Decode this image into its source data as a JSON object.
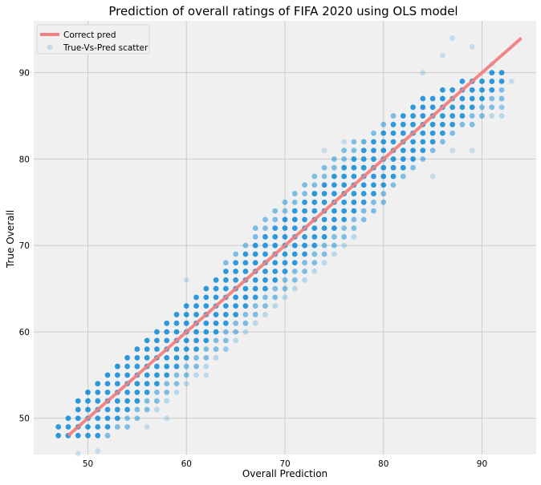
{
  "chart_data": {
    "type": "scatter",
    "title": "Prediction of overall ratings of FIFA 2020 using OLS model",
    "xlabel": "Overall Prediction",
    "ylabel": "True Overall",
    "xlim": [
      44.5,
      95.5
    ],
    "ylim": [
      45.8,
      96.0
    ],
    "xticks": [
      50,
      60,
      70,
      80,
      90
    ],
    "yticks": [
      50,
      60,
      70,
      80,
      90
    ],
    "grid": true,
    "legend_position": "top-left",
    "series": [
      {
        "name": "Correct pred",
        "kind": "line",
        "color": "#f08080",
        "x": [
          48,
          94
        ],
        "y": [
          48,
          94
        ]
      },
      {
        "name": "True-Vs-Pred scatter",
        "kind": "scatter",
        "color": "#0a8ad6",
        "dense_band": {
          "x_range": [
            47,
            92
          ],
          "lower": [
            [
              47,
              48
            ],
            [
              52,
              48
            ],
            [
              58,
              52
            ],
            [
              64,
              58
            ],
            [
              70,
              64
            ],
            [
              76,
              70
            ],
            [
              82,
              78
            ],
            [
              88,
              84
            ],
            [
              92,
              85
            ]
          ],
          "upper": [
            [
              47,
              49
            ],
            [
              50,
              53
            ],
            [
              56,
              59
            ],
            [
              62,
              65
            ],
            [
              68,
              73
            ],
            [
              74,
              79
            ],
            [
              80,
              84
            ],
            [
              86,
              88
            ],
            [
              92,
              90
            ]
          ]
        },
        "outliers": [
          [
            87,
            94
          ],
          [
            86,
            92
          ],
          [
            89,
            93
          ],
          [
            84,
            90
          ],
          [
            86,
            87
          ],
          [
            91,
            91
          ],
          [
            93,
            89
          ],
          [
            92,
            86
          ],
          [
            89,
            81
          ],
          [
            87,
            81
          ],
          [
            85,
            78
          ],
          [
            74,
            81
          ],
          [
            76,
            82
          ],
          [
            78,
            82
          ],
          [
            73,
            76
          ],
          [
            71,
            73
          ],
          [
            66,
            64
          ],
          [
            64,
            58
          ],
          [
            56,
            49
          ],
          [
            49,
            45.9
          ],
          [
            51,
            46.2
          ],
          [
            58,
            50
          ],
          [
            62,
            55
          ],
          [
            60,
            66
          ],
          [
            53,
            56
          ],
          [
            50,
            53
          ]
        ]
      }
    ]
  },
  "legend": {
    "line_label": "Correct pred",
    "scatter_label": "True-Vs-Pred scatter"
  },
  "style": {
    "plot_background": "#f0f0f0",
    "grid_color": "#cbcbcb",
    "line_color": "#f08080",
    "point_color": "#0a8ad6"
  }
}
